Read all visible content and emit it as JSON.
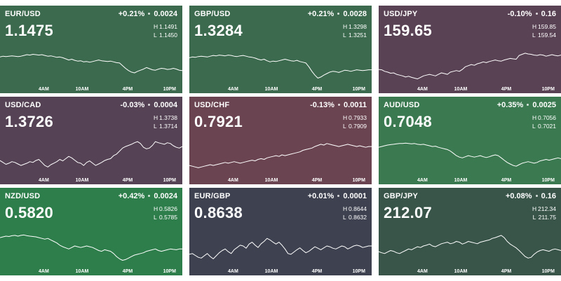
{
  "time_axis": [
    "4AM",
    "10AM",
    "4PM",
    "10PM"
  ],
  "tiles": [
    {
      "pair": "EUR/USD",
      "change_pct": "+0.21%",
      "change_abs": "0.0024",
      "price": "1.1475",
      "high": "1.1491",
      "low": "1.1450",
      "color": "#3c6a4e",
      "series": [
        0.68,
        0.7,
        0.69,
        0.7,
        0.71,
        0.7,
        0.69,
        0.7,
        0.72,
        0.74,
        0.73,
        0.75,
        0.74,
        0.73,
        0.74,
        0.72,
        0.7,
        0.71,
        0.69,
        0.67,
        0.68,
        0.66,
        0.63,
        0.6,
        0.62,
        0.59,
        0.57,
        0.58,
        0.55,
        0.56,
        0.54,
        0.56,
        0.58,
        0.6,
        0.58,
        0.57,
        0.56,
        0.57,
        0.55,
        0.53,
        0.52,
        0.45,
        0.38,
        0.32,
        0.28,
        0.26,
        0.3,
        0.33,
        0.36,
        0.4,
        0.37,
        0.34,
        0.33,
        0.36,
        0.38,
        0.37,
        0.35,
        0.36,
        0.38,
        0.36,
        0.33,
        0.32
      ]
    },
    {
      "pair": "GBP/USD",
      "change_pct": "+0.21%",
      "change_abs": "0.0028",
      "price": "1.3284",
      "high": "1.3298",
      "low": "1.3251",
      "color": "#3c6a4e",
      "series": [
        0.66,
        0.68,
        0.67,
        0.69,
        0.7,
        0.69,
        0.68,
        0.7,
        0.72,
        0.71,
        0.73,
        0.72,
        0.71,
        0.73,
        0.72,
        0.7,
        0.69,
        0.71,
        0.72,
        0.7,
        0.68,
        0.67,
        0.65,
        0.62,
        0.6,
        0.62,
        0.58,
        0.55,
        0.57,
        0.56,
        0.58,
        0.6,
        0.62,
        0.6,
        0.58,
        0.57,
        0.59,
        0.56,
        0.54,
        0.52,
        0.42,
        0.3,
        0.2,
        0.12,
        0.15,
        0.2,
        0.24,
        0.28,
        0.3,
        0.29,
        0.27,
        0.3,
        0.33,
        0.32,
        0.3,
        0.32,
        0.34,
        0.33,
        0.32,
        0.33,
        0.34,
        0.34
      ]
    },
    {
      "pair": "USD/JPY",
      "change_pct": "-0.10%",
      "change_abs": "0.16",
      "price": "159.65",
      "high": "159.85",
      "low": "159.54",
      "color": "#5a4255",
      "series": [
        0.35,
        0.34,
        0.3,
        0.28,
        0.25,
        0.26,
        0.22,
        0.2,
        0.18,
        0.15,
        0.17,
        0.14,
        0.12,
        0.1,
        0.14,
        0.18,
        0.2,
        0.22,
        0.2,
        0.18,
        0.22,
        0.26,
        0.24,
        0.22,
        0.28,
        0.3,
        0.32,
        0.3,
        0.35,
        0.42,
        0.45,
        0.48,
        0.46,
        0.5,
        0.52,
        0.55,
        0.53,
        0.56,
        0.58,
        0.6,
        0.58,
        0.57,
        0.6,
        0.62,
        0.64,
        0.63,
        0.62,
        0.72,
        0.75,
        0.78,
        0.76,
        0.75,
        0.73,
        0.72,
        0.74,
        0.73,
        0.7,
        0.72,
        0.74,
        0.72,
        0.71,
        0.73
      ]
    },
    {
      "pair": "USD/CAD",
      "change_pct": "-0.03%",
      "change_abs": "0.0004",
      "price": "1.3726",
      "high": "1.3738",
      "low": "1.3714",
      "color": "#554255",
      "series": [
        0.35,
        0.3,
        0.25,
        0.28,
        0.32,
        0.3,
        0.26,
        0.22,
        0.25,
        0.28,
        0.32,
        0.3,
        0.35,
        0.38,
        0.3,
        0.22,
        0.18,
        0.24,
        0.28,
        0.32,
        0.38,
        0.34,
        0.4,
        0.46,
        0.42,
        0.36,
        0.3,
        0.28,
        0.22,
        0.3,
        0.34,
        0.28,
        0.22,
        0.26,
        0.3,
        0.35,
        0.38,
        0.4,
        0.48,
        0.52,
        0.6,
        0.68,
        0.72,
        0.75,
        0.78,
        0.82,
        0.85,
        0.8,
        0.7,
        0.66,
        0.68,
        0.75,
        0.85,
        0.82,
        0.8,
        0.78,
        0.82,
        0.8,
        0.74,
        0.7,
        0.68,
        0.72
      ]
    },
    {
      "pair": "USD/CHF",
      "change_pct": "-0.13%",
      "change_abs": "0.0011",
      "price": "0.7921",
      "high": "0.7933",
      "low": "0.7909",
      "color": "#6b4451",
      "series": [
        0.22,
        0.2,
        0.18,
        0.16,
        0.18,
        0.2,
        0.22,
        0.24,
        0.22,
        0.24,
        0.26,
        0.28,
        0.3,
        0.28,
        0.3,
        0.32,
        0.3,
        0.28,
        0.3,
        0.32,
        0.34,
        0.36,
        0.34,
        0.38,
        0.4,
        0.38,
        0.42,
        0.44,
        0.46,
        0.48,
        0.46,
        0.5,
        0.48,
        0.5,
        0.52,
        0.54,
        0.56,
        0.58,
        0.62,
        0.64,
        0.66,
        0.68,
        0.72,
        0.75,
        0.78,
        0.76,
        0.8,
        0.78,
        0.76,
        0.74,
        0.72,
        0.74,
        0.76,
        0.78,
        0.76,
        0.74,
        0.72,
        0.74,
        0.72,
        0.7,
        0.72,
        0.72
      ]
    },
    {
      "pair": "AUD/USD",
      "change_pct": "+0.35%",
      "change_abs": "0.0025",
      "price": "0.7048",
      "high": "0.7056",
      "low": "0.7021",
      "color": "#3b7a50",
      "series": [
        0.7,
        0.72,
        0.74,
        0.76,
        0.77,
        0.78,
        0.79,
        0.8,
        0.8,
        0.81,
        0.8,
        0.79,
        0.8,
        0.78,
        0.77,
        0.78,
        0.76,
        0.74,
        0.72,
        0.73,
        0.7,
        0.68,
        0.66,
        0.64,
        0.6,
        0.54,
        0.48,
        0.44,
        0.42,
        0.45,
        0.48,
        0.46,
        0.44,
        0.46,
        0.48,
        0.45,
        0.43,
        0.45,
        0.48,
        0.5,
        0.48,
        0.42,
        0.36,
        0.3,
        0.26,
        0.22,
        0.2,
        0.24,
        0.28,
        0.3,
        0.32,
        0.3,
        0.28,
        0.3,
        0.34,
        0.36,
        0.38,
        0.36,
        0.38,
        0.4,
        0.42,
        0.4
      ]
    },
    {
      "pair": "NZD/USD",
      "change_pct": "+0.42%",
      "change_abs": "0.0024",
      "price": "0.5820",
      "high": "0.5826",
      "low": "0.5785",
      "color": "#2e7e4b",
      "series": [
        0.72,
        0.74,
        0.76,
        0.75,
        0.77,
        0.78,
        0.76,
        0.78,
        0.79,
        0.77,
        0.76,
        0.75,
        0.74,
        0.72,
        0.7,
        0.68,
        0.7,
        0.66,
        0.62,
        0.58,
        0.52,
        0.48,
        0.45,
        0.42,
        0.46,
        0.5,
        0.48,
        0.46,
        0.48,
        0.5,
        0.48,
        0.46,
        0.42,
        0.38,
        0.36,
        0.4,
        0.38,
        0.36,
        0.3,
        0.22,
        0.16,
        0.12,
        0.14,
        0.18,
        0.22,
        0.26,
        0.28,
        0.3,
        0.32,
        0.36,
        0.38,
        0.4,
        0.42,
        0.38,
        0.36,
        0.38,
        0.4,
        0.42,
        0.41,
        0.4,
        0.42,
        0.42
      ]
    },
    {
      "pair": "EUR/GBP",
      "change_pct": "+0.01%",
      "change_abs": "0.0001",
      "price": "0.8638",
      "high": "0.8644",
      "low": "0.8632",
      "color": "#3e4150",
      "series": [
        0.28,
        0.3,
        0.25,
        0.2,
        0.18,
        0.24,
        0.3,
        0.22,
        0.16,
        0.24,
        0.32,
        0.38,
        0.42,
        0.35,
        0.3,
        0.4,
        0.46,
        0.52,
        0.5,
        0.44,
        0.55,
        0.6,
        0.52,
        0.46,
        0.56,
        0.62,
        0.7,
        0.66,
        0.6,
        0.55,
        0.6,
        0.52,
        0.42,
        0.3,
        0.28,
        0.34,
        0.4,
        0.45,
        0.38,
        0.32,
        0.36,
        0.42,
        0.48,
        0.44,
        0.4,
        0.45,
        0.5,
        0.48,
        0.44,
        0.42,
        0.46,
        0.5,
        0.48,
        0.42,
        0.46,
        0.5,
        0.52,
        0.5,
        0.46,
        0.48,
        0.5,
        0.5
      ]
    },
    {
      "pair": "GBP/JPY",
      "change_pct": "+0.08%",
      "change_abs": "0.16",
      "price": "212.07",
      "high": "212.34",
      "low": "211.75",
      "color": "#39554a",
      "series": [
        0.35,
        0.32,
        0.3,
        0.34,
        0.38,
        0.36,
        0.32,
        0.3,
        0.34,
        0.38,
        0.42,
        0.4,
        0.44,
        0.48,
        0.46,
        0.5,
        0.52,
        0.55,
        0.5,
        0.48,
        0.52,
        0.56,
        0.58,
        0.6,
        0.56,
        0.58,
        0.62,
        0.6,
        0.55,
        0.58,
        0.62,
        0.6,
        0.58,
        0.56,
        0.6,
        0.62,
        0.64,
        0.66,
        0.7,
        0.72,
        0.75,
        0.78,
        0.72,
        0.62,
        0.55,
        0.5,
        0.45,
        0.38,
        0.3,
        0.22,
        0.18,
        0.2,
        0.28,
        0.34,
        0.38,
        0.4,
        0.38,
        0.36,
        0.4,
        0.42,
        0.4,
        0.38
      ]
    }
  ]
}
